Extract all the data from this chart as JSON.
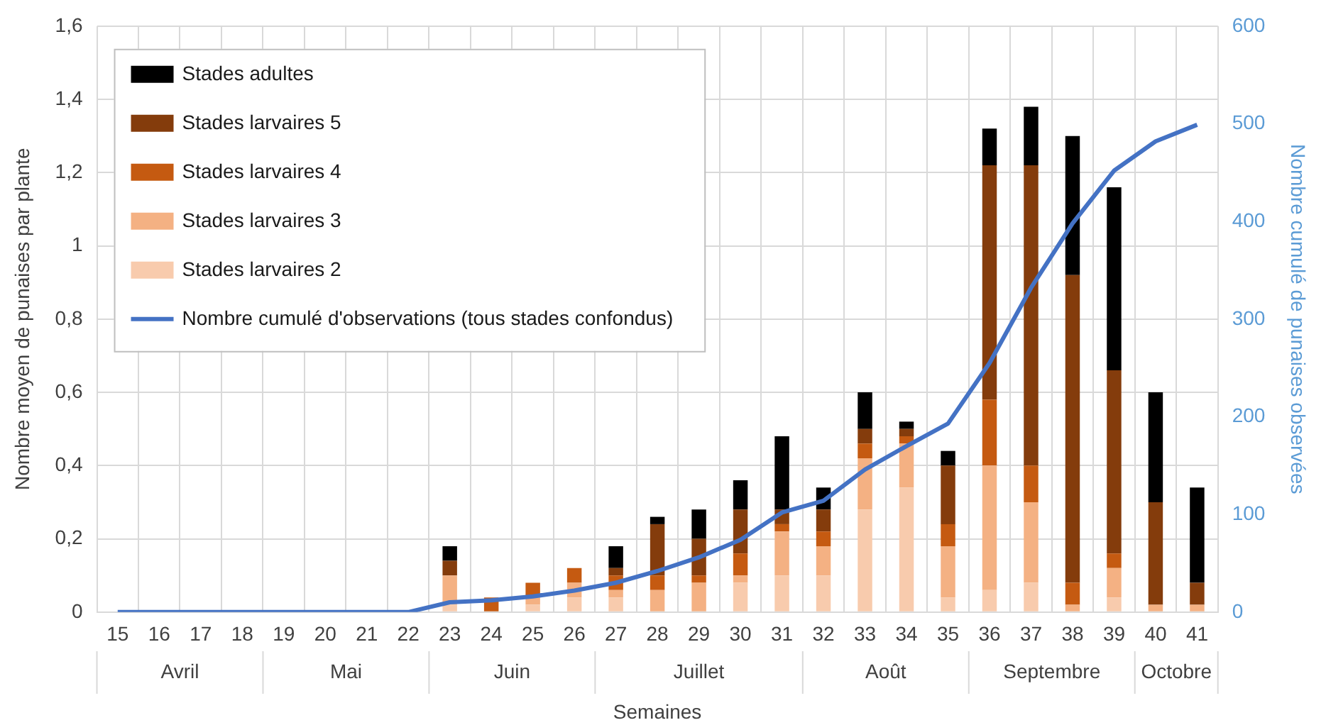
{
  "chart_data": {
    "type": "bar",
    "stacked": true,
    "xlabel": "Semaines",
    "ylabel": "Nombre moyen de punaises par plante",
    "y2label": "Nombre cumulé de punaises observées",
    "categories": [
      "15",
      "16",
      "17",
      "18",
      "19",
      "20",
      "21",
      "22",
      "23",
      "24",
      "25",
      "26",
      "27",
      "28",
      "29",
      "30",
      "31",
      "32",
      "33",
      "34",
      "35",
      "36",
      "37",
      "38",
      "39",
      "40",
      "41"
    ],
    "series": [
      {
        "name": "Stades larvaires 2",
        "color": "#f8cbad",
        "values": [
          0,
          0,
          0,
          0,
          0,
          0,
          0,
          0,
          0.02,
          0,
          0.02,
          0.04,
          0.04,
          0,
          0,
          0.08,
          0.1,
          0.1,
          0.28,
          0.34,
          0.04,
          0.06,
          0.08,
          0,
          0.04,
          0,
          0
        ]
      },
      {
        "name": "Stades larvaires 3",
        "color": "#f4b183",
        "values": [
          0,
          0,
          0,
          0,
          0,
          0,
          0,
          0,
          0.08,
          0,
          0.02,
          0.04,
          0.02,
          0.06,
          0.08,
          0.02,
          0.12,
          0.08,
          0.14,
          0.12,
          0.14,
          0.34,
          0.22,
          0.02,
          0.08,
          0.02,
          0.02
        ]
      },
      {
        "name": "Stades larvaires 4",
        "color": "#c55a11",
        "values": [
          0,
          0,
          0,
          0,
          0,
          0,
          0,
          0,
          0,
          0.04,
          0.04,
          0.04,
          0.04,
          0.04,
          0.02,
          0.06,
          0.02,
          0.04,
          0.04,
          0.02,
          0.06,
          0.18,
          0.1,
          0.06,
          0.04,
          0,
          0
        ]
      },
      {
        "name": "Stades larvaires 5",
        "color": "#843c0c",
        "values": [
          0,
          0,
          0,
          0,
          0,
          0,
          0,
          0,
          0.04,
          0,
          0,
          0,
          0.02,
          0.14,
          0.1,
          0.12,
          0.04,
          0.06,
          0.04,
          0.02,
          0.16,
          0.64,
          0.82,
          0.84,
          0.5,
          0.28,
          0.06
        ]
      },
      {
        "name": "Stades adultes",
        "color": "#000000",
        "values": [
          0,
          0,
          0,
          0,
          0,
          0,
          0,
          0,
          0.04,
          0,
          0,
          0,
          0.06,
          0.02,
          0.08,
          0.08,
          0.2,
          0.06,
          0.1,
          0.02,
          0.04,
          0.1,
          0.16,
          0.38,
          0.5,
          0.3,
          0.26
        ]
      },
      {
        "name": "Nombre cumulé d'observations (tous stades confondus)",
        "type": "line",
        "axis": "y2",
        "color": "#4472c4",
        "values": [
          0,
          0,
          0,
          0,
          0,
          0,
          0,
          0,
          10,
          12,
          16,
          22,
          30,
          42,
          56,
          74,
          102,
          114,
          146,
          170,
          193,
          255,
          332,
          398,
          452,
          482,
          499
        ]
      }
    ],
    "ylim": [
      0,
      1.6
    ],
    "yticks": [
      0,
      {
        "value": 0.2,
        "label": "0,2"
      },
      {
        "value": 0.4,
        "label": "0,4"
      },
      {
        "value": 0.6,
        "label": "0,6"
      },
      {
        "value": 0.8,
        "label": "0,8"
      },
      1,
      {
        "value": 1.2,
        "label": "1,2"
      },
      {
        "value": 1.4,
        "label": "1,4"
      },
      {
        "value": 1.6,
        "label": "1,6"
      }
    ],
    "y2lim": [
      0,
      600
    ],
    "y2ticks": [
      0,
      100,
      200,
      300,
      400,
      500,
      600
    ],
    "grid": true,
    "legend": "top left",
    "marker": "none",
    "annotations": [
      "Avril",
      "Mai",
      "Juin",
      "Juillet",
      "Août",
      "Septembre",
      "Octobre"
    ]
  }
}
